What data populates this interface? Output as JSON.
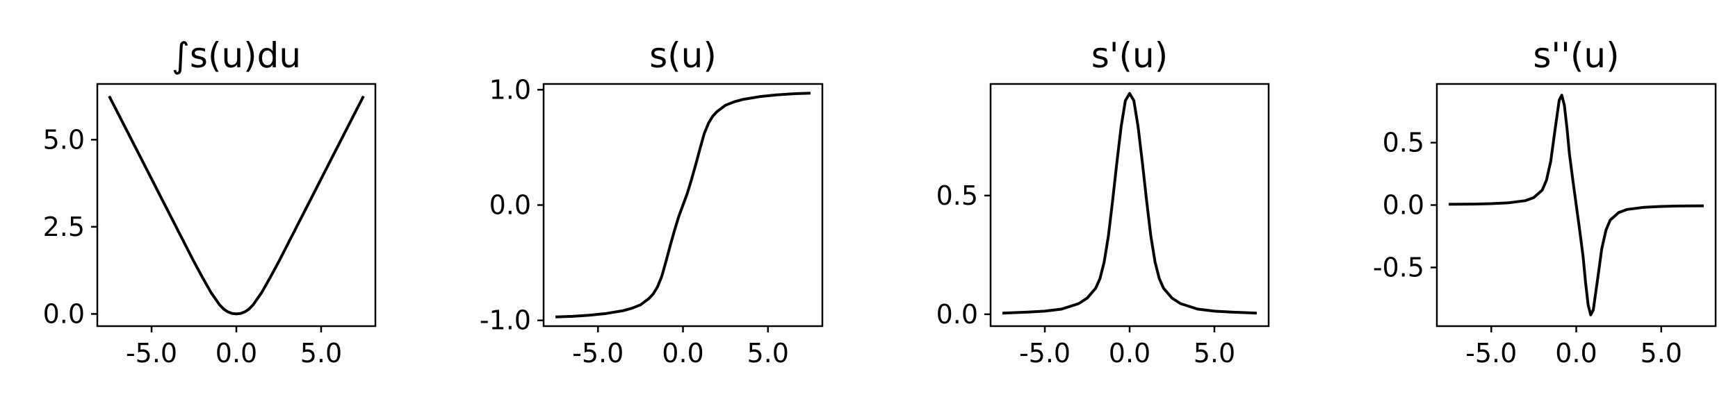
{
  "chart_data": [
    {
      "type": "line",
      "title": "∫s(u)du",
      "xlabel": "",
      "ylabel": "",
      "xlim": [
        -8.2,
        8.2
      ],
      "ylim": [
        -0.35,
        6.6
      ],
      "xticks": [
        -5,
        0,
        5
      ],
      "xtick_labels": [
        "-5.0",
        "0.0",
        "5.0"
      ],
      "yticks": [
        0,
        2.5,
        5
      ],
      "ytick_labels": [
        "0.0",
        "2.5",
        "5.0"
      ],
      "grid": false,
      "series": [
        {
          "color": "#000000",
          "x": [
            -7.5,
            -6.5,
            -5.5,
            -4.5,
            -3.5,
            -2.5,
            -2.0,
            -1.5,
            -1.0,
            -0.75,
            -0.5,
            -0.25,
            0.0,
            0.25,
            0.5,
            0.75,
            1.0,
            1.5,
            2.0,
            2.5,
            3.5,
            4.5,
            5.5,
            6.5,
            7.5
          ],
          "y": [
            6.25,
            5.3,
            4.35,
            3.4,
            2.45,
            1.5,
            1.05,
            0.62,
            0.27,
            0.14,
            0.06,
            0.015,
            0.0,
            0.015,
            0.06,
            0.14,
            0.27,
            0.62,
            1.05,
            1.5,
            2.45,
            3.4,
            4.35,
            5.3,
            6.25
          ]
        }
      ]
    },
    {
      "type": "line",
      "title": "s(u)",
      "xlabel": "",
      "ylabel": "",
      "xlim": [
        -8.2,
        8.2
      ],
      "ylim": [
        -1.05,
        1.05
      ],
      "xticks": [
        -5,
        0,
        5
      ],
      "xtick_labels": [
        "-5.0",
        "0.0",
        "5.0"
      ],
      "yticks": [
        -1,
        0,
        1
      ],
      "ytick_labels": [
        "-1.0",
        "0.0",
        "1.0"
      ],
      "grid": false,
      "series": [
        {
          "color": "#000000",
          "x": [
            -7.5,
            -6.5,
            -5.5,
            -4.5,
            -3.5,
            -3.0,
            -2.5,
            -2.0,
            -1.75,
            -1.5,
            -1.25,
            -1.0,
            -0.75,
            -0.5,
            -0.25,
            0.0,
            0.25,
            0.5,
            0.75,
            1.0,
            1.25,
            1.5,
            1.75,
            2.0,
            2.5,
            3.0,
            3.5,
            4.5,
            5.5,
            6.5,
            7.5
          ],
          "y": [
            -0.97,
            -0.965,
            -0.955,
            -0.94,
            -0.915,
            -0.895,
            -0.865,
            -0.81,
            -0.77,
            -0.71,
            -0.62,
            -0.49,
            -0.35,
            -0.22,
            -0.1,
            0.0,
            0.1,
            0.22,
            0.35,
            0.49,
            0.62,
            0.71,
            0.77,
            0.81,
            0.865,
            0.895,
            0.915,
            0.94,
            0.955,
            0.965,
            0.97
          ]
        }
      ]
    },
    {
      "type": "line",
      "title": "s'(u)",
      "xlabel": "",
      "ylabel": "",
      "xlim": [
        -8.2,
        8.2
      ],
      "ylim": [
        -0.05,
        0.97
      ],
      "xticks": [
        -5,
        0,
        5
      ],
      "xtick_labels": [
        "-5.0",
        "0.0",
        "5.0"
      ],
      "yticks": [
        0,
        0.5
      ],
      "ytick_labels": [
        "0.0",
        "0.5"
      ],
      "grid": false,
      "series": [
        {
          "color": "#000000",
          "x": [
            -7.5,
            -6.0,
            -5.0,
            -4.0,
            -3.0,
            -2.5,
            -2.0,
            -1.75,
            -1.5,
            -1.25,
            -1.0,
            -0.75,
            -0.5,
            -0.25,
            0.0,
            0.25,
            0.5,
            0.75,
            1.0,
            1.25,
            1.5,
            1.75,
            2.0,
            2.5,
            3.0,
            4.0,
            5.0,
            6.0,
            7.5
          ],
          "y": [
            0.005,
            0.009,
            0.013,
            0.022,
            0.045,
            0.068,
            0.11,
            0.15,
            0.22,
            0.33,
            0.48,
            0.64,
            0.79,
            0.9,
            0.93,
            0.9,
            0.79,
            0.64,
            0.48,
            0.33,
            0.22,
            0.15,
            0.11,
            0.068,
            0.045,
            0.022,
            0.013,
            0.009,
            0.005
          ]
        }
      ]
    },
    {
      "type": "line",
      "title": "s''(u)",
      "xlabel": "",
      "ylabel": "",
      "xlim": [
        -8.2,
        8.2
      ],
      "ylim": [
        -0.97,
        0.97
      ],
      "xticks": [
        -5,
        0,
        5
      ],
      "xtick_labels": [
        "-5.0",
        "0.0",
        "5.0"
      ],
      "yticks": [
        -0.5,
        0,
        0.5
      ],
      "ytick_labels": [
        "-0.5",
        "0.0",
        "0.5"
      ],
      "grid": false,
      "series": [
        {
          "color": "#000000",
          "x": [
            -7.5,
            -6.0,
            -5.0,
            -4.0,
            -3.0,
            -2.5,
            -2.0,
            -1.75,
            -1.5,
            -1.25,
            -1.0,
            -0.85,
            -0.7,
            -0.55,
            -0.4,
            -0.2,
            0.0,
            0.2,
            0.4,
            0.55,
            0.7,
            0.85,
            1.0,
            1.25,
            1.5,
            1.75,
            2.0,
            2.5,
            3.0,
            4.0,
            5.0,
            6.0,
            7.5
          ],
          "y": [
            0.006,
            0.008,
            0.011,
            0.018,
            0.035,
            0.06,
            0.12,
            0.2,
            0.35,
            0.6,
            0.84,
            0.88,
            0.8,
            0.62,
            0.41,
            0.2,
            0.0,
            -0.2,
            -0.41,
            -0.62,
            -0.8,
            -0.88,
            -0.84,
            -0.6,
            -0.35,
            -0.2,
            -0.12,
            -0.06,
            -0.035,
            -0.018,
            -0.011,
            -0.008,
            -0.006
          ]
        }
      ]
    }
  ]
}
